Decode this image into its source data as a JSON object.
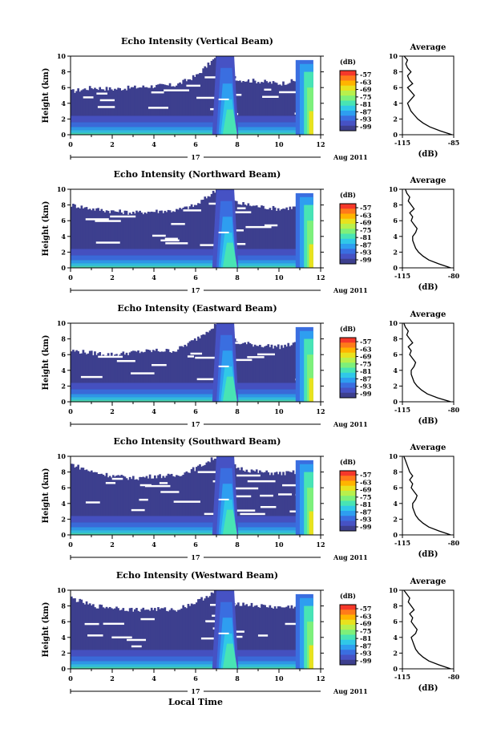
{
  "x_axis_label": "Local Time",
  "date_day": "17",
  "date_month_year": "Aug 2011",
  "colorbar": {
    "unit": "(dB)",
    "ticks": [
      "-57",
      "-63",
      "-69",
      "-75",
      "-81",
      "-87",
      "-93",
      "-99"
    ],
    "colors": [
      "#f5382a",
      "#ff7a1a",
      "#ffb400",
      "#e8e21e",
      "#b8f04c",
      "#7ef07a",
      "#48e4b4",
      "#30c8e8",
      "#2e9ef0",
      "#3a6ee0",
      "#4652c4",
      "#3d3f8e"
    ]
  },
  "profile": {
    "title": "Average",
    "unit_label": "(dB)",
    "yticks": [
      "0",
      "2",
      "4",
      "6",
      "8",
      "10"
    ]
  },
  "chart_data": [
    {
      "type": "heatmap",
      "title": "Echo Intensity (Vertical Beam)",
      "ylabel": "Height (km)",
      "xlabel": "Local Time",
      "xlim": [
        0,
        12
      ],
      "ylim": [
        0,
        10
      ],
      "xticks": [
        "0",
        "2",
        "4",
        "6",
        "8",
        "10",
        "12"
      ],
      "yticks": [
        "0",
        "2",
        "4",
        "6",
        "8",
        "10"
      ],
      "colorbar_range": [
        -99,
        -57
      ],
      "echo_top_km": [
        5.5,
        6.0,
        5.8,
        6.0,
        6.2,
        6.3,
        7.5,
        10.0,
        7.0,
        6.8,
        6.5,
        7.0,
        10.0
      ],
      "profile": {
        "title": "Average",
        "xlabel": "(dB)",
        "xticks": [
          "-115",
          "-85"
        ],
        "xlim": [
          -115,
          -85
        ],
        "heights_km": [
          0,
          0.5,
          1,
          1.5,
          2,
          2.5,
          3,
          3.5,
          4,
          4.5,
          5,
          5.5,
          6,
          6.5,
          7,
          7.5,
          8,
          8.5,
          9,
          9.5,
          10
        ],
        "values_db": [
          -86,
          -93,
          -99,
          -103,
          -106,
          -108,
          -110,
          -111,
          -112,
          -110,
          -108,
          -110,
          -112,
          -109,
          -111,
          -112,
          -110,
          -112,
          -113,
          -112,
          -114
        ]
      }
    },
    {
      "type": "heatmap",
      "title": "Echo Intensity (Northward Beam)",
      "ylabel": "Height (km)",
      "xlabel": "Local Time",
      "xlim": [
        0,
        12
      ],
      "ylim": [
        0,
        10
      ],
      "xticks": [
        "0",
        "2",
        "4",
        "6",
        "8",
        "10",
        "12"
      ],
      "yticks": [
        "0",
        "2",
        "4",
        "6",
        "8",
        "10"
      ],
      "colorbar_range": [
        -99,
        -57
      ],
      "echo_top_km": [
        8.0,
        7.5,
        7.2,
        7.0,
        7.2,
        7.3,
        8.0,
        10.0,
        8.2,
        7.8,
        7.5,
        7.8,
        10.0
      ],
      "profile": {
        "title": "Average",
        "xlabel": "(dB)",
        "xticks": [
          "-115",
          "-80"
        ],
        "xlim": [
          -115,
          -80
        ],
        "heights_km": [
          0,
          0.5,
          1,
          1.5,
          2,
          2.5,
          3,
          3.5,
          4,
          4.5,
          5,
          5.5,
          6,
          6.5,
          7,
          7.5,
          8,
          8.5,
          9,
          9.5,
          10
        ],
        "values_db": [
          -82,
          -90,
          -97,
          -101,
          -104,
          -106,
          -107,
          -108,
          -108,
          -106,
          -105,
          -107,
          -109,
          -108,
          -110,
          -107,
          -109,
          -111,
          -110,
          -112,
          -113
        ]
      }
    },
    {
      "type": "heatmap",
      "title": "Echo Intensity (Eastward Beam)",
      "ylabel": "Height (km)",
      "xlabel": "Local Time",
      "xlim": [
        0,
        12
      ],
      "ylim": [
        0,
        10
      ],
      "xticks": [
        "0",
        "2",
        "4",
        "6",
        "8",
        "10",
        "12"
      ],
      "yticks": [
        "0",
        "2",
        "4",
        "6",
        "8",
        "10"
      ],
      "colorbar_range": [
        -99,
        -57
      ],
      "echo_top_km": [
        6.5,
        6.2,
        6.0,
        6.3,
        6.5,
        6.5,
        8.0,
        10.0,
        7.5,
        7.2,
        7.0,
        7.5,
        10.0
      ],
      "profile": {
        "title": "Average",
        "xlabel": "(dB)",
        "xticks": [
          "-115",
          "-80"
        ],
        "xlim": [
          -115,
          -80
        ],
        "heights_km": [
          0,
          0.5,
          1,
          1.5,
          2,
          2.5,
          3,
          3.5,
          4,
          4.5,
          5,
          5.5,
          6,
          6.5,
          7,
          7.5,
          8,
          8.5,
          9,
          9.5,
          10
        ],
        "values_db": [
          -82,
          -91,
          -98,
          -102,
          -105,
          -107,
          -108,
          -109,
          -109,
          -107,
          -106,
          -108,
          -110,
          -109,
          -111,
          -108,
          -110,
          -112,
          -111,
          -113,
          -114
        ]
      }
    },
    {
      "type": "heatmap",
      "title": "Echo Intensity (Southward Beam)",
      "ylabel": "Height (km)",
      "xlabel": "Local Time",
      "xlim": [
        0,
        12
      ],
      "ylim": [
        0,
        10
      ],
      "xticks": [
        "0",
        "2",
        "4",
        "6",
        "8",
        "10",
        "12"
      ],
      "yticks": [
        "0",
        "2",
        "4",
        "6",
        "8",
        "10"
      ],
      "colorbar_range": [
        -99,
        -57
      ],
      "echo_top_km": [
        9.0,
        8.0,
        7.5,
        7.2,
        7.5,
        7.5,
        8.5,
        10.0,
        8.5,
        8.0,
        7.8,
        8.0,
        10.0
      ],
      "profile": {
        "title": "Average",
        "xlabel": "(dB)",
        "xticks": [
          "-115",
          "-80"
        ],
        "xlim": [
          -115,
          -80
        ],
        "heights_km": [
          0,
          0.5,
          1,
          1.5,
          2,
          2.5,
          3,
          3.5,
          4,
          4.5,
          5,
          5.5,
          6,
          6.5,
          7,
          7.5,
          8,
          8.5,
          9,
          9.5,
          10
        ],
        "values_db": [
          -82,
          -90,
          -97,
          -101,
          -104,
          -106,
          -107,
          -108,
          -108,
          -106,
          -105,
          -107,
          -109,
          -108,
          -110,
          -108,
          -110,
          -111,
          -112,
          -113,
          -114
        ]
      }
    },
    {
      "type": "heatmap",
      "title": "Echo Intensity (Westward Beam)",
      "ylabel": "Height (km)",
      "xlabel": "Local Time",
      "xlim": [
        0,
        12
      ],
      "ylim": [
        0,
        10
      ],
      "xticks": [
        "0",
        "2",
        "4",
        "6",
        "8",
        "10",
        "12"
      ],
      "yticks": [
        "0",
        "2",
        "4",
        "6",
        "8",
        "10"
      ],
      "colorbar_range": [
        -99,
        -57
      ],
      "echo_top_km": [
        9.0,
        8.0,
        7.8,
        7.5,
        7.6,
        7.5,
        8.5,
        10.0,
        8.3,
        8.0,
        7.8,
        8.0,
        10.0
      ],
      "profile": {
        "title": "Average",
        "xlabel": "(dB)",
        "xticks": [
          "-115",
          "-80"
        ],
        "xlim": [
          -115,
          -80
        ],
        "heights_km": [
          0,
          0.5,
          1,
          1.5,
          2,
          2.5,
          3,
          3.5,
          4,
          4.5,
          5,
          5.5,
          6,
          6.5,
          7,
          7.5,
          8,
          8.5,
          9,
          9.5,
          10
        ],
        "values_db": [
          -82,
          -90,
          -97,
          -101,
          -104,
          -106,
          -107,
          -108,
          -109,
          -106,
          -105,
          -107,
          -109,
          -108,
          -110,
          -107,
          -109,
          -111,
          -110,
          -112,
          -114
        ]
      }
    }
  ]
}
